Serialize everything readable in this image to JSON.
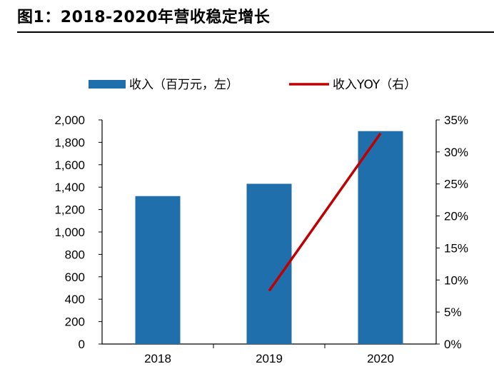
{
  "figure": {
    "title": "图1：2018-2020年营收稳定增长"
  },
  "colors": {
    "bar": "#1f6fac",
    "line": "#c00000",
    "axis": "#000000"
  },
  "chart_data": {
    "type": "bar",
    "categories": [
      "2018",
      "2019",
      "2020"
    ],
    "series": [
      {
        "name": "收入（百万元，左）",
        "type": "bar",
        "axis": "left",
        "values": [
          1320,
          1430,
          1900
        ]
      },
      {
        "name": "收入YOY（右）",
        "type": "line",
        "axis": "right",
        "values": [
          null,
          8.3,
          32.9
        ]
      }
    ],
    "y_left": {
      "ylim": [
        0,
        2000
      ],
      "ticks": [
        "0",
        "200",
        "400",
        "600",
        "800",
        "1,000",
        "1,200",
        "1,400",
        "1,600",
        "1,800",
        "2,000"
      ]
    },
    "y_right": {
      "ylim": [
        0,
        35
      ],
      "ticks": [
        "0%",
        "5%",
        "10%",
        "15%",
        "20%",
        "25%",
        "30%",
        "35%"
      ]
    },
    "grid": false,
    "legend_position": "top"
  }
}
